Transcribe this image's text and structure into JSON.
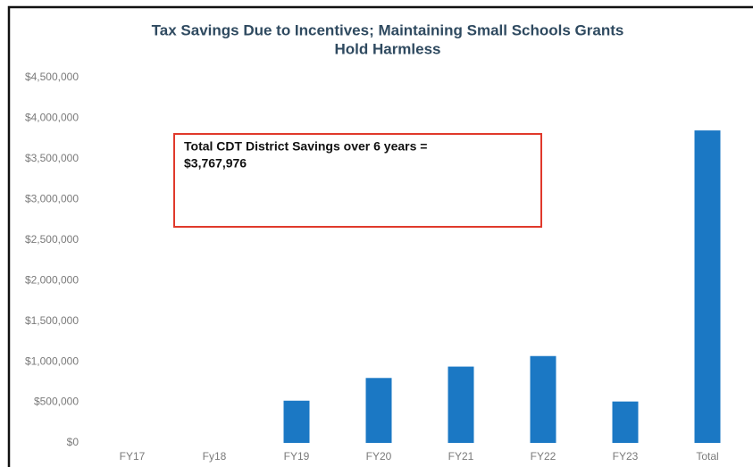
{
  "chart_data": {
    "type": "bar",
    "title": [
      "Tax Savings Due to Incentives; Maintaining Small Schools Grants",
      "Hold Harmless"
    ],
    "annotation": [
      "Total CDT District Savings over 6 years =",
      "$3,767,976"
    ],
    "categories": [
      "FY17",
      "Fy18",
      "FY19",
      "FY20",
      "FY21",
      "FY22",
      "FY23",
      "Total"
    ],
    "values": [
      0,
      0,
      520000,
      800000,
      940000,
      1070000,
      510000,
      3850000
    ],
    "color": "#1b78c4",
    "ylim": [
      0,
      4500000
    ],
    "yticks": [
      {
        "value": 0,
        "label": "$0"
      },
      {
        "value": 500000,
        "label": "$500,000"
      },
      {
        "value": 1000000,
        "label": "$1,000,000"
      },
      {
        "value": 1500000,
        "label": "$1,500,000"
      },
      {
        "value": 2000000,
        "label": "$2,000,000"
      },
      {
        "value": 2500000,
        "label": "$2,500,000"
      },
      {
        "value": 3000000,
        "label": "$3,000,000"
      },
      {
        "value": 3500000,
        "label": "$3,500,000"
      },
      {
        "value": 4000000,
        "label": "$4,000,000"
      },
      {
        "value": 4500000,
        "label": "$4,500,000"
      }
    ],
    "grid": false
  }
}
